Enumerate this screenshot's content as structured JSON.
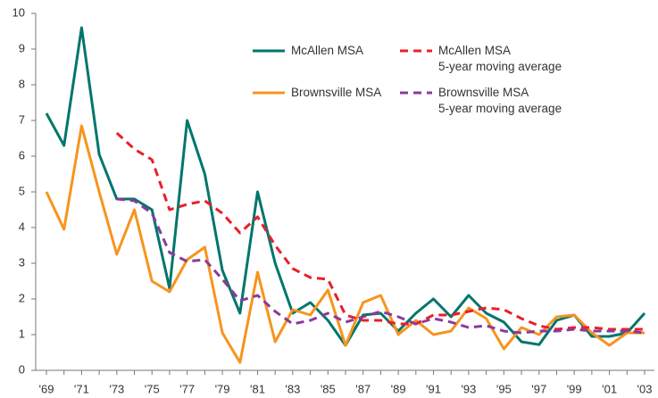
{
  "chart_data": {
    "type": "line",
    "categories": [
      "'69",
      null,
      "'71",
      null,
      "'73",
      null,
      "'75",
      null,
      "'77",
      null,
      "'79",
      null,
      "'81",
      null,
      "'83",
      null,
      "'85",
      null,
      "'87",
      null,
      "'89",
      null,
      "'91",
      null,
      "'93",
      null,
      "'95",
      null,
      "'97",
      null,
      "'99",
      null,
      "'01",
      null,
      "'03"
    ],
    "series": [
      {
        "name": "McAllen MSA",
        "color": "#00766c",
        "dashed": false,
        "values": [
          7.2,
          6.3,
          9.6,
          6.05,
          4.8,
          4.8,
          4.5,
          2.3,
          7.0,
          5.5,
          2.8,
          1.6,
          5.0,
          3.0,
          1.6,
          1.9,
          1.4,
          0.7,
          1.55,
          1.6,
          1.1,
          1.6,
          2.0,
          1.5,
          2.1,
          1.6,
          1.35,
          0.8,
          0.72,
          1.4,
          1.55,
          0.95,
          0.95,
          1.05,
          1.6
        ]
      },
      {
        "name": "Brownsville MSA",
        "color": "#f7941d",
        "dashed": false,
        "values": [
          5.0,
          3.95,
          6.85,
          5.0,
          3.25,
          4.5,
          2.5,
          2.2,
          3.1,
          3.45,
          1.05,
          0.22,
          2.75,
          0.8,
          1.7,
          1.55,
          2.25,
          0.7,
          1.9,
          2.1,
          1.0,
          1.4,
          1.0,
          1.1,
          1.75,
          1.45,
          0.6,
          1.2,
          1.0,
          1.5,
          1.55,
          1.05,
          0.7,
          1.05,
          1.05
        ]
      },
      {
        "name": "McAllen MSA\n5-year moving average",
        "color": "#e8202a",
        "dashed": true,
        "values": [
          null,
          null,
          null,
          null,
          6.65,
          6.2,
          5.9,
          4.5,
          4.65,
          4.75,
          4.4,
          3.85,
          4.3,
          3.5,
          2.85,
          2.6,
          2.55,
          1.55,
          1.4,
          1.4,
          1.3,
          1.3,
          1.55,
          1.55,
          1.65,
          1.75,
          1.7,
          1.45,
          1.25,
          1.15,
          1.2,
          1.2,
          1.15,
          1.15,
          1.15
        ]
      },
      {
        "name": "Brownsville MSA\n5-year moving average",
        "color": "#8b3a9c",
        "dashed": true,
        "values": [
          null,
          null,
          null,
          null,
          4.8,
          4.75,
          4.4,
          3.3,
          3.05,
          3.1,
          2.55,
          1.95,
          2.1,
          1.65,
          1.3,
          1.4,
          1.6,
          1.35,
          1.5,
          1.65,
          1.5,
          1.3,
          1.45,
          1.35,
          1.2,
          1.25,
          1.1,
          1.05,
          1.1,
          1.1,
          1.15,
          1.1,
          1.1,
          1.1,
          1.05
        ]
      }
    ],
    "ylim": [
      0,
      10
    ],
    "yticks": [
      0,
      1,
      2,
      3,
      4,
      5,
      6,
      7,
      8,
      9,
      10
    ],
    "grid": false
  }
}
